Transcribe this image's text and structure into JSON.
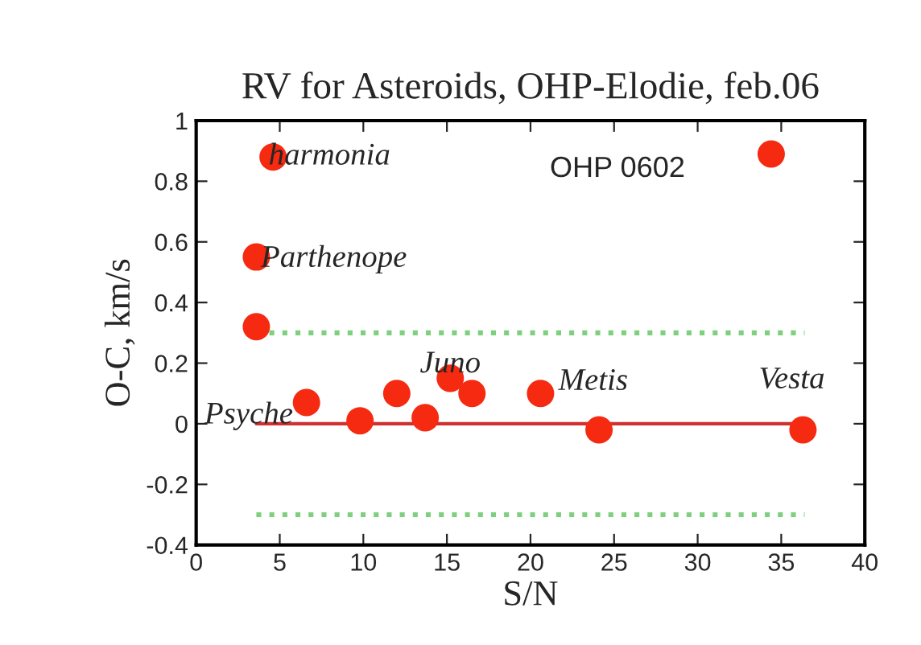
{
  "chart_data": {
    "type": "scatter",
    "title": "RV for Asteroids, OHP-Elodie, feb.06",
    "xlabel": "S/N",
    "ylabel": "O-C, km/s",
    "x": [
      4.6,
      34.4,
      3.6,
      3.6,
      6.6,
      9.8,
      12.0,
      13.7,
      15.2,
      16.5,
      20.6,
      24.1,
      36.3
    ],
    "series": [
      {
        "color": "#f52a10",
        "values": [
          0.88,
          0.89,
          0.55,
          0.32,
          0.07,
          0.01,
          0.1,
          0.02,
          0.15,
          0.1,
          0.1,
          -0.02,
          -0.02
        ]
      }
    ],
    "marker": "circle",
    "grid": false,
    "xlim": [
      0,
      40
    ],
    "xticks": [
      0,
      5,
      10,
      15,
      20,
      25,
      30,
      35,
      40
    ],
    "ylim": [
      -0.4,
      1
    ],
    "yticks": [
      -0.4,
      -0.2,
      0,
      0.2,
      0.4,
      0.6,
      0.8,
      1
    ],
    "ref_lines": [
      {
        "axis": "y",
        "value": 0,
        "color": "#d03030",
        "line_style": "solid"
      },
      {
        "axis": "y",
        "value": 0.3,
        "color": "#7ed07e",
        "line_style": "dotted"
      },
      {
        "axis": "y",
        "value": -0.3,
        "color": "#7ed07e",
        "line_style": "dotted"
      }
    ],
    "annotations": [
      {
        "text": "harmonia",
        "x": 4.6,
        "y": 0.88
      },
      {
        "text": "Parthenope",
        "x": 3.6,
        "y": 0.55
      },
      {
        "text": "Psyche",
        "x": 6.6,
        "y": 0.07
      },
      {
        "text": "Juno",
        "x": 15.2,
        "y": 0.15
      },
      {
        "text": "Metis",
        "x": 20.6,
        "y": 0.1
      },
      {
        "text": "Vesta",
        "x": 36.3,
        "y": -0.02
      },
      "OHP 0602"
    ]
  }
}
